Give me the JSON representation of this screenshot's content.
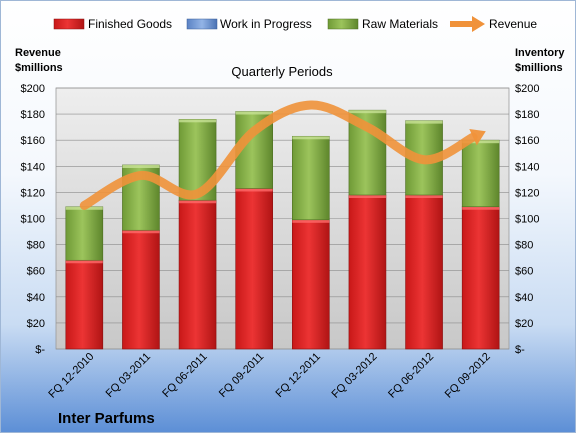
{
  "chart_data": {
    "type": "bar",
    "stacked": true,
    "title": "Quarterly Periods",
    "company": "Inter Parfums",
    "ylabel_left": [
      "Revenue",
      "$millions"
    ],
    "ylabel_right": [
      "Inventory",
      "$millions"
    ],
    "ylim": [
      0,
      200
    ],
    "yticks": [
      "$-",
      "$20",
      "$40",
      "$60",
      "$80",
      "$100",
      "$120",
      "$140",
      "$160",
      "$180",
      "$200"
    ],
    "categories": [
      "FQ 12-2010",
      "FQ 03-2011",
      "FQ 06-2011",
      "FQ 09-2011",
      "FQ 12-2011",
      "FQ 03-2012",
      "FQ 06-2012",
      "FQ 09-2012"
    ],
    "series": [
      {
        "name": "Finished Goods",
        "kind": "bar",
        "color": "#e02020",
        "values": [
          68,
          91,
          114,
          123,
          99,
          118,
          118,
          109
        ]
      },
      {
        "name": "Work in Progress",
        "kind": "bar",
        "color": "#6f97d6",
        "values": [
          0,
          0,
          0,
          0,
          0,
          0,
          0,
          0
        ]
      },
      {
        "name": "Raw Materials",
        "kind": "bar",
        "color": "#8db84a",
        "values": [
          41,
          50,
          62,
          59,
          64,
          65,
          57,
          51
        ]
      },
      {
        "name": "Revenue",
        "kind": "line",
        "color": "#f0923a",
        "values": [
          110,
          133,
          119,
          167,
          187,
          170,
          145,
          165
        ]
      }
    ],
    "grid": true,
    "legend_position": "top"
  }
}
